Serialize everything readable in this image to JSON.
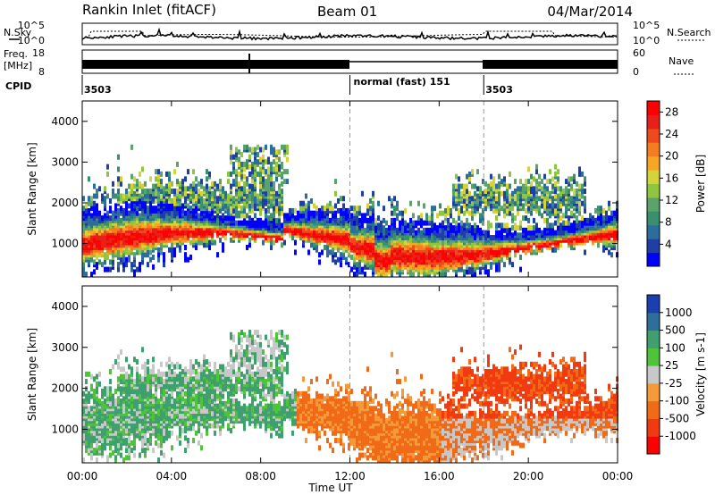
{
  "header": {
    "title": "Rankin Inlet (fitACF)",
    "beam": "Beam 01",
    "date": "04/Mar/2014"
  },
  "status_panel": {
    "nsky_label": "N.Sky",
    "nsearch_label": "N.Search",
    "nsky_ticks": [
      "10^5",
      "10^0"
    ],
    "nsearch_ticks": [
      "10^5",
      "10^0"
    ],
    "freq_label_1": "Freq.",
    "freq_label_2": "[MHz]",
    "freq_ticks": [
      "18",
      "8"
    ],
    "nave_label": "Nave",
    "nave_ticks": [
      "60",
      "0"
    ],
    "cpid_label": "CPID",
    "cpid_segments": [
      {
        "text": "3503",
        "start_hour": 0
      },
      {
        "text": "normal (fast) 151",
        "start_hour": 12
      },
      {
        "text": "3503",
        "start_hour": 18
      }
    ]
  },
  "colors": {
    "power_scale": [
      "#0000ff",
      "#1f3fa6",
      "#2b6e9b",
      "#3a8f6e",
      "#5aa36a",
      "#8fc63f",
      "#d4d43a",
      "#f6a623",
      "#f57c1f",
      "#ee4a1b",
      "#e8201a",
      "#ff0000"
    ],
    "velocity_scale": [
      "#ff0000",
      "#f23a10",
      "#f06a17",
      "#f39a3a",
      "#c8c8c8",
      "#4fc43a",
      "#3f9f6f",
      "#2e6e9a",
      "#1a3fb0"
    ]
  },
  "chart_data": [
    {
      "type": "heatmap",
      "name": "power-panel",
      "xlabel": "Time UT",
      "ylabel": "Slant Range [km]",
      "x_ticks": [
        "00:00",
        "04:00",
        "08:00",
        "12:00",
        "16:00",
        "20:00",
        "00:00"
      ],
      "xlim": [
        0,
        24
      ],
      "y_ticks": [
        1000,
        2000,
        3000,
        4000
      ],
      "ylim": [
        180,
        4500
      ],
      "colorbar_label": "Power [dB]",
      "colorbar_ticks": [
        4,
        8,
        12,
        16,
        20,
        24,
        28
      ],
      "colorbar_range": [
        0,
        30
      ],
      "dashed_vlines_hours": [
        12,
        18
      ]
    },
    {
      "type": "heatmap",
      "name": "velocity-panel",
      "xlabel": "Time UT",
      "ylabel": "Slant Range [km]",
      "x_ticks": [
        "00:00",
        "04:00",
        "08:00",
        "12:00",
        "16:00",
        "20:00",
        "00:00"
      ],
      "xlim": [
        0,
        24
      ],
      "y_ticks": [
        1000,
        2000,
        3000,
        4000
      ],
      "ylim": [
        180,
        4500
      ],
      "colorbar_label": "Velocity [m s-1]",
      "colorbar_ticks": [
        1000,
        500,
        100,
        25,
        -25,
        -100,
        -500,
        -1000
      ],
      "dashed_vlines_hours": [
        12,
        18
      ]
    }
  ]
}
